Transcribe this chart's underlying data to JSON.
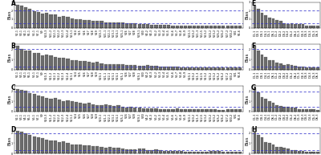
{
  "panels": [
    {
      "label": "A",
      "n_bars": 54,
      "ylim": [
        0,
        3.0
      ],
      "dashed_lines": [
        2.0,
        0.5
      ],
      "yticks": [
        0,
        1,
        2,
        3
      ]
    },
    {
      "label": "B",
      "n_bars": 54,
      "ylim": [
        0,
        2.5
      ],
      "dashed_lines": [
        2.0,
        0.3
      ],
      "yticks": [
        0,
        1,
        2
      ]
    },
    {
      "label": "C",
      "n_bars": 54,
      "ylim": [
        0,
        2.5
      ],
      "dashed_lines": [
        2.0,
        0.5
      ],
      "yticks": [
        0,
        1,
        2
      ]
    },
    {
      "label": "D",
      "n_bars": 54,
      "ylim": [
        0,
        2.5
      ],
      "dashed_lines": [
        2.0,
        0.3
      ],
      "yticks": [
        0,
        1,
        2
      ]
    },
    {
      "label": "E",
      "n_bars": 18,
      "ylim": [
        0,
        3.0
      ],
      "dashed_lines": [
        2.0,
        0.5
      ],
      "yticks": [
        0,
        1,
        2,
        3
      ]
    },
    {
      "label": "F",
      "n_bars": 18,
      "ylim": [
        0,
        2.5
      ],
      "dashed_lines": [
        2.0,
        0.3
      ],
      "yticks": [
        0,
        1,
        2
      ]
    },
    {
      "label": "G",
      "n_bars": 18,
      "ylim": [
        0,
        2.5
      ],
      "dashed_lines": [
        2.0,
        0.5
      ],
      "yticks": [
        0,
        1,
        2
      ]
    },
    {
      "label": "H",
      "n_bars": 18,
      "ylim": [
        0,
        2.5
      ],
      "dashed_lines": [
        2.0,
        0.3
      ],
      "yticks": [
        0,
        1,
        2
      ]
    }
  ],
  "bar_color": "#6b6b6b",
  "bar_edge_color": "#333333",
  "dashed_color": "#3333cc",
  "background_color": "#ffffff",
  "ylabel": "Bias",
  "label_fontsize": 5.5,
  "tick_fontsize": 2.5,
  "ylabel_fontsize": 4.0,
  "vlabels_large": [
    "V2-1",
    "V3-1",
    "V4-1",
    "V5-1",
    "V6-1",
    "V7-1",
    "V9",
    "V10-3",
    "V11-2",
    "V12-1",
    "V12-2",
    "V12-3",
    "V12-4",
    "V13-1",
    "V14",
    "V15",
    "V16",
    "V17",
    "V18",
    "V19",
    "V20-1",
    "V21-1",
    "V22-1",
    "V23-1",
    "V24-1",
    "V25-1",
    "V26",
    "V27",
    "V28",
    "V29-1",
    "V30",
    "V4-2",
    "V4-3",
    "V6-2",
    "V6-3",
    "V6-4",
    "V6-5",
    "V6-6",
    "V6-7",
    "V6-8",
    "V6-9",
    "V10-1",
    "V10-2",
    "V11-3",
    "V12-5",
    "V13-2",
    "V20-2",
    "V23-2",
    "V25-2",
    "V26-2",
    "V27-2",
    "V30-2",
    "V31",
    "V5-6"
  ],
  "vlabels_small": [
    "D1-1",
    "D2-1",
    "D3-1",
    "D4-1",
    "D5-1",
    "D6-1",
    "D1-2",
    "D2-2",
    "D3-2",
    "D4-2",
    "D5-2",
    "D6-2",
    "D1-3",
    "D2-3",
    "D3-3",
    "D4-3",
    "D5-3",
    "D6-3"
  ]
}
